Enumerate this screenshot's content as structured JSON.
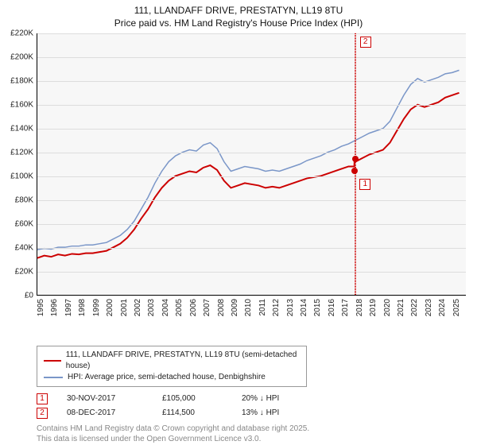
{
  "title": {
    "line1": "111, LLANDAFF DRIVE, PRESTATYN, LL19 8TU",
    "line2": "Price paid vs. HM Land Registry's House Price Index (HPI)",
    "fontsize": 12,
    "color": "#111111"
  },
  "chart": {
    "type": "line",
    "plot_bg": "#f7f7f7",
    "grid_color": "#dddddd",
    "axis_color": "#000000",
    "x": {
      "min": 1995,
      "max": 2025.99,
      "ticks": [
        1995,
        1996,
        1997,
        1998,
        1999,
        2000,
        2001,
        2002,
        2003,
        2004,
        2005,
        2006,
        2007,
        2008,
        2009,
        2010,
        2011,
        2012,
        2013,
        2014,
        2015,
        2016,
        2017,
        2018,
        2019,
        2020,
        2021,
        2022,
        2023,
        2024,
        2025
      ],
      "label_fontsize": 10
    },
    "y": {
      "min": 0,
      "max": 220000,
      "ticks": [
        0,
        20000,
        40000,
        60000,
        80000,
        100000,
        120000,
        140000,
        160000,
        180000,
        200000,
        220000
      ],
      "tick_labels": [
        "£0",
        "£20K",
        "£40K",
        "£60K",
        "£80K",
        "£100K",
        "£120K",
        "£140K",
        "£160K",
        "£180K",
        "£200K",
        "£220K"
      ],
      "label_fontsize": 10
    },
    "series": [
      {
        "name": "price_paid",
        "color": "#cc0000",
        "width": 2,
        "points": [
          [
            1995,
            31000
          ],
          [
            1995.5,
            33000
          ],
          [
            1996,
            32000
          ],
          [
            1996.5,
            34000
          ],
          [
            1997,
            33000
          ],
          [
            1997.5,
            34500
          ],
          [
            1998,
            34000
          ],
          [
            1998.5,
            35000
          ],
          [
            1999,
            35000
          ],
          [
            1999.5,
            36000
          ],
          [
            2000,
            37000
          ],
          [
            2000.5,
            40000
          ],
          [
            2001,
            43000
          ],
          [
            2001.5,
            48000
          ],
          [
            2002,
            55000
          ],
          [
            2002.5,
            64000
          ],
          [
            2003,
            72000
          ],
          [
            2003.5,
            82000
          ],
          [
            2004,
            90000
          ],
          [
            2004.5,
            96000
          ],
          [
            2005,
            100000
          ],
          [
            2005.5,
            102000
          ],
          [
            2006,
            104000
          ],
          [
            2006.5,
            103000
          ],
          [
            2007,
            107000
          ],
          [
            2007.5,
            109000
          ],
          [
            2008,
            105000
          ],
          [
            2008.5,
            96000
          ],
          [
            2009,
            90000
          ],
          [
            2009.5,
            92000
          ],
          [
            2010,
            94000
          ],
          [
            2010.5,
            93000
          ],
          [
            2011,
            92000
          ],
          [
            2011.5,
            90000
          ],
          [
            2012,
            91000
          ],
          [
            2012.5,
            90000
          ],
          [
            2013,
            92000
          ],
          [
            2013.5,
            94000
          ],
          [
            2014,
            96000
          ],
          [
            2014.5,
            98000
          ],
          [
            2015,
            99000
          ],
          [
            2015.5,
            100000
          ],
          [
            2016,
            102000
          ],
          [
            2016.5,
            104000
          ],
          [
            2017,
            106000
          ],
          [
            2017.5,
            108000
          ],
          [
            2017.92,
            108000
          ],
          [
            2017.94,
            114500
          ],
          [
            2018,
            112000
          ],
          [
            2018.5,
            115000
          ],
          [
            2019,
            118000
          ],
          [
            2019.5,
            120000
          ],
          [
            2020,
            122000
          ],
          [
            2020.5,
            128000
          ],
          [
            2021,
            138000
          ],
          [
            2021.5,
            148000
          ],
          [
            2022,
            156000
          ],
          [
            2022.5,
            160000
          ],
          [
            2023,
            158000
          ],
          [
            2023.5,
            160000
          ],
          [
            2024,
            162000
          ],
          [
            2024.5,
            166000
          ],
          [
            2025,
            168000
          ],
          [
            2025.5,
            170000
          ]
        ]
      },
      {
        "name": "hpi",
        "color": "#7a96c8",
        "width": 1.5,
        "points": [
          [
            1995,
            38000
          ],
          [
            1995.5,
            39000
          ],
          [
            1996,
            38500
          ],
          [
            1996.5,
            40000
          ],
          [
            1997,
            40000
          ],
          [
            1997.5,
            41000
          ],
          [
            1998,
            41000
          ],
          [
            1998.5,
            42000
          ],
          [
            1999,
            42000
          ],
          [
            1999.5,
            43000
          ],
          [
            2000,
            44000
          ],
          [
            2000.5,
            47000
          ],
          [
            2001,
            50000
          ],
          [
            2001.5,
            55000
          ],
          [
            2002,
            62000
          ],
          [
            2002.5,
            72000
          ],
          [
            2003,
            82000
          ],
          [
            2003.5,
            94000
          ],
          [
            2004,
            104000
          ],
          [
            2004.5,
            112000
          ],
          [
            2005,
            117000
          ],
          [
            2005.5,
            120000
          ],
          [
            2006,
            122000
          ],
          [
            2006.5,
            121000
          ],
          [
            2007,
            126000
          ],
          [
            2007.5,
            128000
          ],
          [
            2008,
            123000
          ],
          [
            2008.5,
            112000
          ],
          [
            2009,
            104000
          ],
          [
            2009.5,
            106000
          ],
          [
            2010,
            108000
          ],
          [
            2010.5,
            107000
          ],
          [
            2011,
            106000
          ],
          [
            2011.5,
            104000
          ],
          [
            2012,
            105000
          ],
          [
            2012.5,
            104000
          ],
          [
            2013,
            106000
          ],
          [
            2013.5,
            108000
          ],
          [
            2014,
            110000
          ],
          [
            2014.5,
            113000
          ],
          [
            2015,
            115000
          ],
          [
            2015.5,
            117000
          ],
          [
            2016,
            120000
          ],
          [
            2016.5,
            122000
          ],
          [
            2017,
            125000
          ],
          [
            2017.5,
            127000
          ],
          [
            2018,
            130000
          ],
          [
            2018.5,
            133000
          ],
          [
            2019,
            136000
          ],
          [
            2019.5,
            138000
          ],
          [
            2020,
            140000
          ],
          [
            2020.5,
            146000
          ],
          [
            2021,
            157000
          ],
          [
            2021.5,
            168000
          ],
          [
            2022,
            177000
          ],
          [
            2022.5,
            182000
          ],
          [
            2023,
            179000
          ],
          [
            2023.5,
            181000
          ],
          [
            2024,
            183000
          ],
          [
            2024.5,
            186000
          ],
          [
            2025,
            187000
          ],
          [
            2025.5,
            189000
          ]
        ]
      }
    ],
    "transactions": [
      {
        "n": "1",
        "date_frac": 2017.915,
        "price": 105000,
        "box_pos": "below",
        "color": "#cc0000",
        "date": "30-NOV-2017",
        "price_label": "£105,000",
        "pct": "20% ↓ HPI"
      },
      {
        "n": "2",
        "date_frac": 2017.937,
        "price": 114500,
        "box_pos": "above",
        "color": "#cc0000",
        "date": "08-DEC-2017",
        "price_label": "£114,500",
        "pct": "13% ↓ HPI"
      }
    ]
  },
  "legend": {
    "items": [
      {
        "color": "#cc0000",
        "width": 2,
        "label": "111, LLANDAFF DRIVE, PRESTATYN, LL19 8TU (semi-detached house)"
      },
      {
        "color": "#7a96c8",
        "width": 1.5,
        "label": "HPI: Average price, semi-detached house, Denbighshire"
      }
    ]
  },
  "attribution": {
    "line1": "Contains HM Land Registry data © Crown copyright and database right 2025.",
    "line2": "This data is licensed under the Open Government Licence v3.0."
  }
}
